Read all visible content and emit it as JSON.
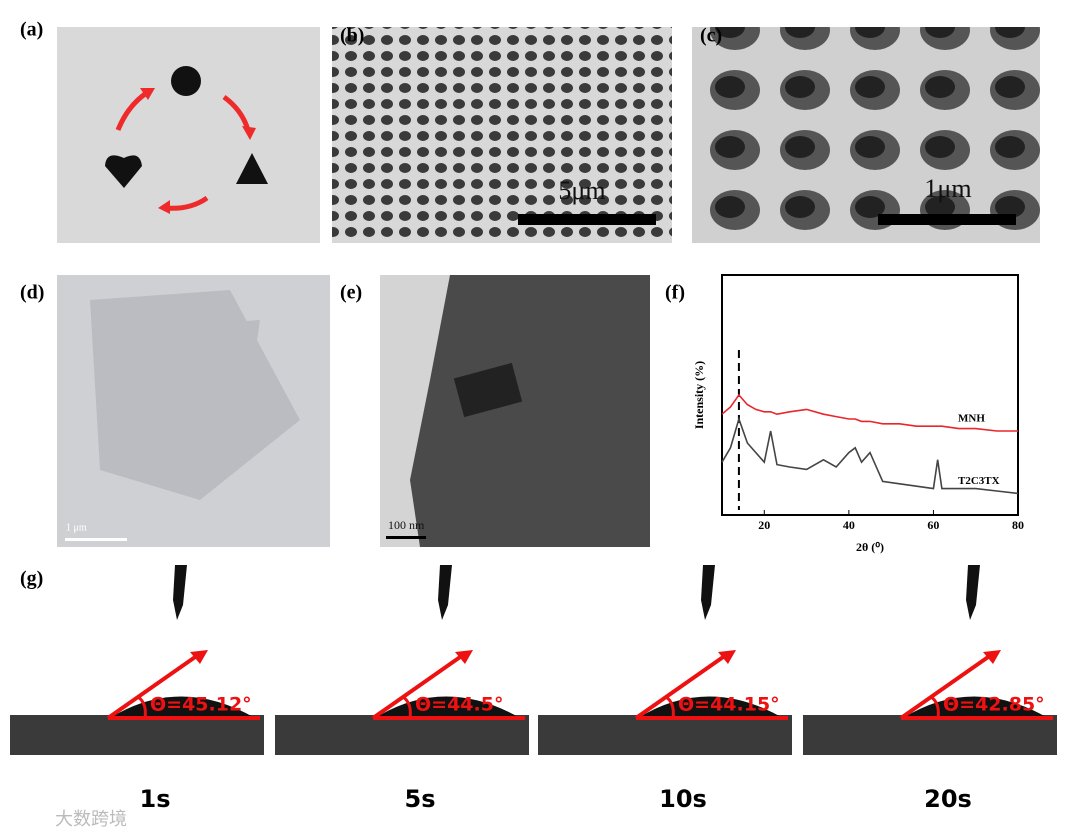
{
  "panels": {
    "a": {
      "label": "(a)"
    },
    "b": {
      "label": "(b)",
      "scale_bar": "5μm"
    },
    "c": {
      "label": "(c)",
      "scale_bar": "1μm"
    },
    "d": {
      "label": "(d)",
      "scale_bar": "1 μm"
    },
    "e": {
      "label": "(e)",
      "scale_bar": "100 nm"
    },
    "f": {
      "label": "(f)"
    },
    "g": {
      "label": "(g)",
      "angle_labels": [
        "Θ=45.12°",
        "Θ=44.5°",
        "Θ=44.15°",
        "Θ=42.85°"
      ],
      "times": [
        "1s",
        "5s",
        "10s",
        "20s"
      ]
    }
  },
  "chart_data": {
    "type": "line",
    "x_label": "2θ (⁰)",
    "y_label": "Intensity (%)",
    "xlim": [
      10,
      80
    ],
    "xticks": [
      20,
      40,
      60,
      80
    ],
    "ylim": [
      0,
      100
    ],
    "reference_line_x": 14,
    "x": [
      10,
      12,
      14,
      16,
      18,
      20,
      21.5,
      23,
      26,
      30,
      34,
      37,
      40,
      41.5,
      43,
      45,
      48,
      52,
      56,
      60,
      61,
      62,
      66,
      70,
      75,
      80
    ],
    "series": [
      {
        "name": "MNH",
        "color": "#e8262b",
        "values": [
          42,
          45,
          50,
          46,
          44,
          43,
          43,
          42,
          43,
          44,
          42,
          41,
          40,
          40,
          39,
          39,
          38,
          38,
          37,
          37,
          37,
          37,
          36,
          36,
          35,
          35
        ]
      },
      {
        "name": "T2C3TX",
        "color": "#444444",
        "values": [
          22,
          28,
          40,
          30,
          26,
          22,
          35,
          21,
          20,
          19,
          23,
          20,
          26,
          28,
          22,
          26,
          14,
          13,
          12,
          11,
          23,
          11,
          11,
          11,
          10,
          9
        ]
      }
    ]
  },
  "watermark": "大数跨境"
}
